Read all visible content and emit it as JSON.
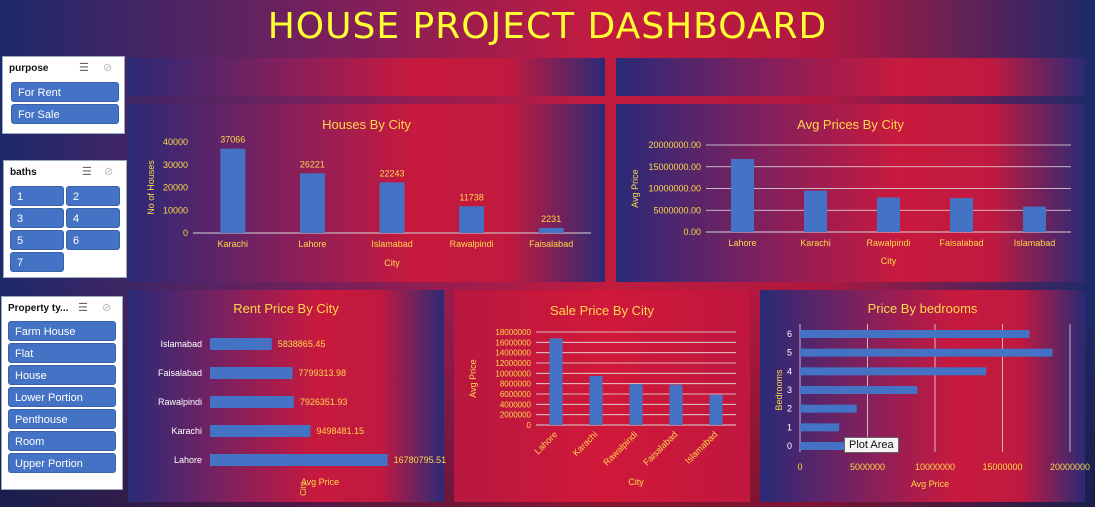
{
  "dashboard_title": "HOUSE PROJECT DASHBOARD",
  "colors": {
    "bar": "#4472c4",
    "label": "#ffd84a",
    "title": "#ffff33"
  },
  "slicers": {
    "purpose": {
      "header": "purpose",
      "items": [
        "For Rent",
        "For Sale"
      ]
    },
    "baths": {
      "header": "baths",
      "items": [
        "1",
        "2",
        "3",
        "4",
        "5",
        "6",
        "7"
      ]
    },
    "property": {
      "header": "Property ty...",
      "items": [
        "Farm House",
        "Flat",
        "House",
        "Lower Portion",
        "Penthouse",
        "Room",
        "Upper Portion"
      ]
    }
  },
  "tooltip": "Plot Area",
  "chart_data": [
    {
      "type": "bar",
      "title": "Houses By  City",
      "xlabel": "City",
      "ylabel": "No of Houses",
      "categories": [
        "Karachi",
        "Lahore",
        "Islamabad",
        "Rawalpindi",
        "Faisalabad"
      ],
      "values": [
        37066,
        26221,
        22243,
        11738,
        2231
      ],
      "value_labels": [
        "37066",
        "26221",
        "22243",
        "11738",
        "2231"
      ],
      "ylim": [
        0,
        40000
      ],
      "yticks": [
        "0",
        "10000",
        "20000",
        "30000",
        "40000"
      ]
    },
    {
      "type": "bar",
      "title": "Avg Prices By City",
      "xlabel": "City",
      "ylabel": "Avg Price",
      "categories": [
        "Lahore",
        "Karachi",
        "Rawalpindi",
        "Faisalabad",
        "Islamabad"
      ],
      "values": [
        16780795.51,
        9498481.15,
        7926351.93,
        7799313.98,
        5838865.45
      ],
      "ylim": [
        0,
        20000000
      ],
      "yticks": [
        "0.00",
        "5000000.00",
        "10000000.00",
        "15000000.00",
        "20000000.00"
      ]
    },
    {
      "type": "bar",
      "orientation": "horizontal",
      "title": "Rent Price By City",
      "xlabel": "Avg Price",
      "ylabel": "City",
      "categories": [
        "Islamabad",
        "Faisalabad",
        "Rawalpindi",
        "Karachi",
        "Lahore"
      ],
      "values": [
        5838865.45,
        7799313.98,
        7926351.93,
        9498481.15,
        16780795.51
      ],
      "value_labels": [
        "5838865.45",
        "7799313.98",
        "7926351.93",
        "9498481.15",
        "16780795.51"
      ]
    },
    {
      "type": "bar",
      "title": "Sale Price By City",
      "xlabel": "City",
      "ylabel": "Avg Price",
      "categories": [
        "Lahore",
        "Karachi",
        "Rawalpindi",
        "Faisalabad",
        "Islamabad"
      ],
      "values": [
        16780795.51,
        9498481.15,
        7926351.93,
        7799313.98,
        5838865.45
      ],
      "ylim": [
        0,
        18000000
      ],
      "yticks": [
        "0",
        "2000000",
        "4000000",
        "6000000",
        "8000000",
        "10000000",
        "12000000",
        "14000000",
        "16000000",
        "18000000"
      ]
    },
    {
      "type": "bar",
      "orientation": "horizontal",
      "title": "Price By bedrooms",
      "xlabel": "Avg Price",
      "ylabel": "Bedrooms",
      "categories": [
        "6",
        "5",
        "4",
        "3",
        "2",
        "1",
        "0"
      ],
      "values": [
        17000000,
        18700000,
        13800000,
        8700000,
        4200000,
        2900000,
        3800000
      ],
      "xlim": [
        0,
        20000000
      ],
      "xticks": [
        "0",
        "5000000",
        "10000000",
        "15000000",
        "20000000"
      ]
    }
  ]
}
